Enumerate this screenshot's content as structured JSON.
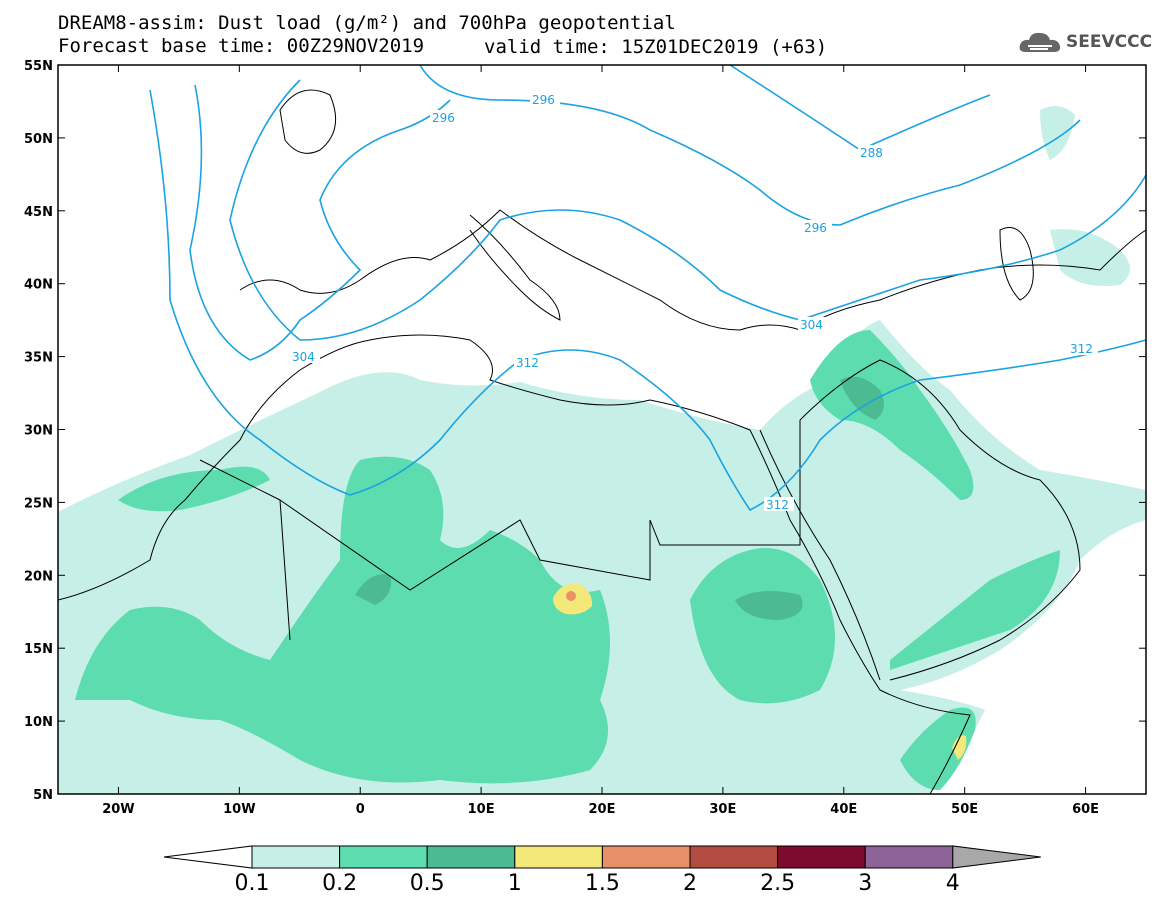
{
  "header": {
    "title_line1": "DREAM8-assim: Dust load (g/m²) and 700hPa geopotential",
    "title_line2": "Forecast base time: 00Z29NOV2019",
    "valid_time": "valid time: 15Z01DEC2019 (+63)",
    "logo_text": "SEEVCCC",
    "logo_icon": "cloud-icon"
  },
  "map": {
    "lat_labels": [
      "55N",
      "50N",
      "45N",
      "40N",
      "35N",
      "30N",
      "25N",
      "20N",
      "15N",
      "10N",
      "5N"
    ],
    "lon_labels": [
      "20W",
      "10W",
      "0",
      "10E",
      "20E",
      "30E",
      "40E",
      "50E",
      "60E"
    ],
    "lat_range": [
      5,
      55
    ],
    "lon_range": [
      -25,
      65
    ],
    "contour_color": "#1aa3e0",
    "contour_labels": [
      "296",
      "296",
      "288",
      "296",
      "304",
      "304",
      "312",
      "312",
      "312"
    ]
  },
  "colorbar": {
    "labels": [
      "0.1",
      "0.2",
      "0.5",
      "1",
      "1.5",
      "2",
      "2.5",
      "3",
      "4"
    ],
    "colors": [
      "#c6efe8",
      "#5cdcaf",
      "#4cbb91",
      "#f5e87a",
      "#e89068",
      "#b24c40",
      "#7c0b2e",
      "#8d6498",
      "#a8a8a8"
    ]
  }
}
